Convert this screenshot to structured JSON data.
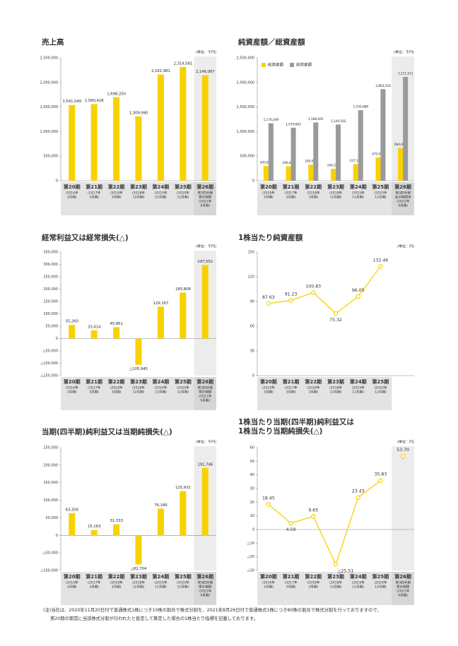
{
  "chart_data": [
    {
      "type": "bar",
      "title": "売上高",
      "unit": "(単位：千円)",
      "categories": [
        "第20期",
        "第21期",
        "第22期",
        "第23期",
        "第24期",
        "第25期",
        "第26期"
      ],
      "category_notes": [
        [
          "(2016年",
          "3月期)"
        ],
        [
          "(2017年",
          "3月期)"
        ],
        [
          "(2018年",
          "3月期)"
        ],
        [
          "(2018年",
          "12月期)"
        ],
        [
          "(2019年",
          "12月期)"
        ],
        [
          "(2020年",
          "12月期)"
        ],
        [
          "第3四半期",
          "累計期間",
          "(2021年",
          "9月期)"
        ]
      ],
      "values": [
        1541049,
        1560428,
        1698250,
        1309990,
        2161981,
        2314581,
        2146087
      ],
      "value_labels": [
        "1,541,049",
        "1,560,428",
        "1,698,250",
        "1,309,990",
        "2,161,981",
        "2,314,581",
        "2,146,087"
      ],
      "color": "#f7d200",
      "ylim": [
        0,
        2500000
      ],
      "yticks": [
        0,
        {
          "value": 500000,
          "label": "500,000"
        },
        {
          "value": 1000000,
          "label": "1,000,000"
        },
        {
          "value": 1500000,
          "label": "1,500,000"
        },
        {
          "value": 2000000,
          "label": "2,000,000"
        },
        {
          "value": 2500000,
          "label": "2,500,000"
        }
      ]
    },
    {
      "type": "bar",
      "title": "純資産額／総資産額",
      "unit": "(単位：千円)",
      "legend": "upper left",
      "categories": [
        "第20期",
        "第21期",
        "第22期",
        "第23期",
        "第24期",
        "第25期",
        "第26期"
      ],
      "category_notes": [
        [
          "(2016年",
          "3月期)"
        ],
        [
          "(2017年",
          "3月期)"
        ],
        [
          "(2018年",
          "3月期)"
        ],
        [
          "(2018年",
          "12月期)"
        ],
        [
          "(2019年",
          "12月期)"
        ],
        [
          "(2020年",
          "12月期)"
        ],
        [
          "第3四半期",
          "会計期間末",
          "(2021年",
          "9月期)"
        ]
      ],
      "series": [
        {
          "name": "純資産額",
          "color": "#f7d200",
          "values": [
            300873,
            296687,
            326928,
            244224,
            337110,
            472922,
            664669
          ],
          "value_labels": [
            "300,873",
            "296,687",
            "326,928",
            "244,224",
            "337,110",
            "472,922",
            "664,669"
          ]
        },
        {
          "name": "総資産額",
          "color": "#9a9a9a",
          "values": [
            1170209,
            1079662,
            1186691,
            1144502,
            1435688,
            1863216,
            2111511
          ],
          "value_labels": [
            "1,170,209",
            "1,079,662",
            "1,186,691",
            "1,144,502",
            "1,435,688",
            "1,863,216",
            "2,111,511"
          ]
        }
      ],
      "ylim": [
        0,
        2500000
      ],
      "yticks": [
        0,
        {
          "value": 500000,
          "label": "500,000"
        },
        {
          "value": 1000000,
          "label": "1,000,000"
        },
        {
          "value": 1500000,
          "label": "1,500,000"
        },
        {
          "value": 2000000,
          "label": "2,000,000"
        },
        {
          "value": 2500000,
          "label": "2,500,000"
        }
      ]
    },
    {
      "type": "bar",
      "title": "経常利益又は経常損失(△)",
      "unit": "(単位：千円)",
      "categories": [
        "第20期",
        "第21期",
        "第22期",
        "第23期",
        "第24期",
        "第25期",
        "第26期"
      ],
      "category_notes": [
        [
          "(2016年",
          "3月期)"
        ],
        [
          "(2017年",
          "3月期)"
        ],
        [
          "(2018年",
          "3月期)"
        ],
        [
          "(2018年",
          "12月期)"
        ],
        [
          "(2019年",
          "12月期)"
        ],
        [
          "(2020年",
          "12月期)"
        ],
        [
          "第3四半期",
          "累計期間",
          "(2021年",
          "9月期)"
        ]
      ],
      "values": [
        55260,
        33414,
        45861,
        -105945,
        129167,
        185808,
        297552
      ],
      "value_labels": [
        "55,260",
        "33,414",
        "45,861",
        "△105,945",
        "129,167",
        "185,808",
        "297,552"
      ],
      "color": "#f7d200",
      "ylim": [
        -150000,
        350000
      ],
      "yticks": [
        {
          "value": -150000,
          "label": "△150,000"
        },
        {
          "value": -100000,
          "label": "△100,000"
        },
        {
          "value": -50000,
          "label": "△50,000"
        },
        0,
        {
          "value": 50000,
          "label": "50,000"
        },
        {
          "value": 100000,
          "label": "100,000"
        },
        {
          "value": 150000,
          "label": "150,000"
        },
        {
          "value": 200000,
          "label": "200,000"
        },
        {
          "value": 250000,
          "label": "250,000"
        },
        {
          "value": 300000,
          "label": "300,000"
        },
        {
          "value": 350000,
          "label": "350,000"
        }
      ]
    },
    {
      "type": "line",
      "title": "1株当たり純資産額",
      "unit": "(単位：円)",
      "categories": [
        "第20期",
        "第21期",
        "第22期",
        "第23期",
        "第24期",
        "第25期"
      ],
      "category_notes": [
        [
          "(2016年",
          "3月期)"
        ],
        [
          "(2017年",
          "3月期)"
        ],
        [
          "(2018年",
          "3月期)"
        ],
        [
          "(2018年",
          "12月期)"
        ],
        [
          "(2019年",
          "12月期)"
        ],
        [
          "(2020年",
          "12月期)"
        ]
      ],
      "series": [
        {
          "color": "#f7d200",
          "values": [
            87.63,
            91.23,
            100.83,
            75.32,
            96.05,
            132.46
          ]
        }
      ],
      "ylim": [
        0,
        150
      ],
      "yticks": [
        0,
        30,
        60,
        90,
        120,
        150
      ]
    },
    {
      "type": "bar",
      "title": "当期(四半期)純利益又は当期純損失(△)",
      "unit": "(単位：千円)",
      "categories": [
        "第20期",
        "第21期",
        "第22期",
        "第23期",
        "第24期",
        "第25期",
        "第26期"
      ],
      "category_notes": [
        [
          "(2016年",
          "3月期)"
        ],
        [
          "(2017年",
          "3月期)"
        ],
        [
          "(2018年",
          "3月期)"
        ],
        [
          "(2018年",
          "12月期)"
        ],
        [
          "(2019年",
          "12月期)"
        ],
        [
          "(2020年",
          "12月期)"
        ],
        [
          "第3四半期",
          "累計期間",
          "(2021年",
          "9月期)"
        ]
      ],
      "values": [
        63356,
        15163,
        31333,
        -82704,
        76186,
        125931,
        191746
      ],
      "value_labels": [
        "63,356",
        "15,163",
        "31,333",
        "△82,704",
        "76,186",
        "125,931",
        "191,746"
      ],
      "color": "#f7d200",
      "ylim": [
        -100000,
        250000
      ],
      "yticks": [
        {
          "value": -100000,
          "label": "△100,000"
        },
        {
          "value": -50000,
          "label": "△50,000"
        },
        0,
        {
          "value": 50000,
          "label": "50,000"
        },
        {
          "value": 100000,
          "label": "100,000"
        },
        {
          "value": 150000,
          "label": "150,000"
        },
        {
          "value": 200000,
          "label": "200,000"
        },
        {
          "value": 250000,
          "label": "250,000"
        }
      ]
    },
    {
      "type": "line",
      "title": [
        "1株当たり当期(四半期)純利益又は",
        "1株当たり当期純損失(△)"
      ],
      "unit": "(単位：円)",
      "categories": [
        "第20期",
        "第21期",
        "第22期",
        "第23期",
        "第24期",
        "第25期",
        "第26期"
      ],
      "category_notes": [
        [
          "(2016年",
          "3月期)"
        ],
        [
          "(2017年",
          "3月期)"
        ],
        [
          "(2018年",
          "3月期)"
        ],
        [
          "(2018年",
          "12月期)"
        ],
        [
          "(2019年",
          "12月期)"
        ],
        [
          "(2020年",
          "12月期)"
        ],
        [
          "第3四半期",
          "累計期間",
          "(2021年",
          "9月期)"
        ]
      ],
      "series": [
        {
          "color": "#f7d200",
          "values": [
            18.45,
            4.59,
            9.65,
            -25.51,
            23.43,
            35.83,
            null
          ],
          "value_labels": [
            "18.45",
            "4.59",
            "9.65",
            "△25.51",
            "23.43",
            "35.83",
            null
          ]
        },
        {
          "color": "#f7d200",
          "values": [
            null,
            null,
            null,
            null,
            null,
            null,
            53.7
          ],
          "value_labels": [
            null,
            null,
            null,
            null,
            null,
            null,
            "53.70"
          ]
        }
      ],
      "ylim": [
        -30,
        60
      ],
      "yticks": [
        {
          "value": -30,
          "label": "△30"
        },
        {
          "value": -20,
          "label": "△20"
        },
        {
          "value": -10,
          "label": "△10"
        },
        0,
        10,
        20,
        30,
        40,
        50,
        60
      ]
    }
  ],
  "footnote": [
    "(注)当社は、2020年11月20日付で普通株式1株につき10株の割合で株式分割を、2021年8月26日付で普通株式1株につき80株の割合で株式分割を行っておりますので、",
    "第20期の期首に当該株式分割が行われたと仮定して算定した場合の1株当たり指標を記載しております。"
  ]
}
